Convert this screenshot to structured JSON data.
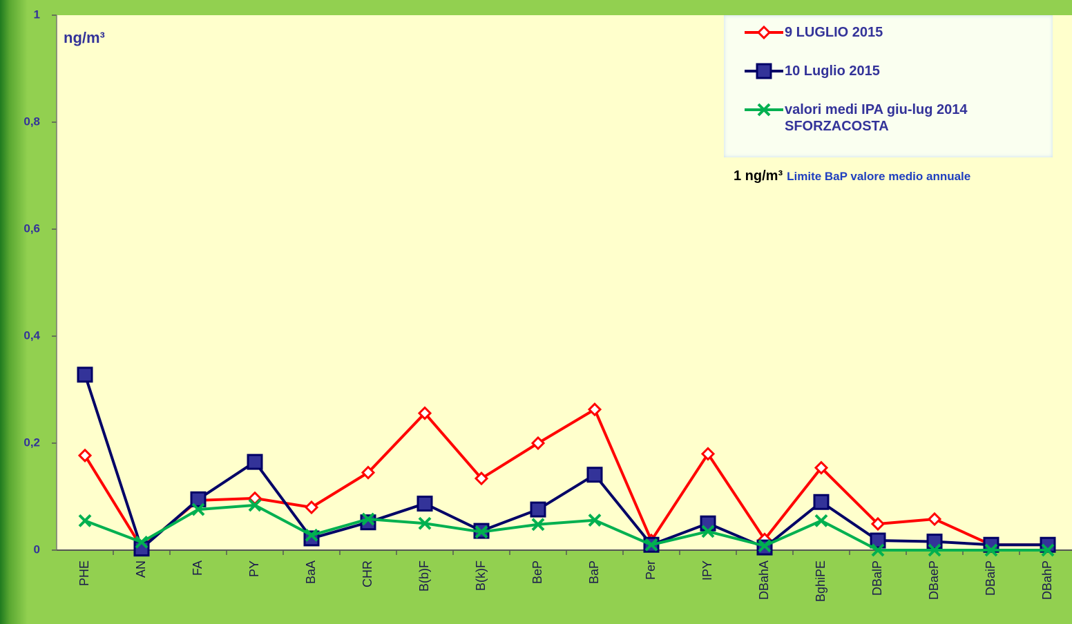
{
  "chart_data": {
    "type": "line",
    "categories": [
      "PHE",
      "AN",
      "FA",
      "PY",
      "BaA",
      "CHR",
      "B(b)F",
      "B(k)F",
      "BeP",
      "BaP",
      "Per",
      "IPY",
      "DBahA",
      "BghiPE",
      "DBalP",
      "DBaeP",
      "DBaiP",
      "DBahP"
    ],
    "series": [
      {
        "name": "9 LUGLIO 2015",
        "color": "#ff0000",
        "marker": "diamond",
        "values": [
          0.177,
          0.005,
          0.093,
          0.097,
          0.08,
          0.145,
          0.256,
          0.134,
          0.2,
          0.263,
          0.018,
          0.18,
          0.02,
          0.154,
          0.049,
          0.058,
          0.01,
          0.01
        ]
      },
      {
        "name": "10 Luglio 2015",
        "color": "#000066",
        "marker": "square",
        "values": [
          0.328,
          0.003,
          0.095,
          0.165,
          0.022,
          0.052,
          0.087,
          0.036,
          0.076,
          0.141,
          0.01,
          0.05,
          0.005,
          0.09,
          0.018,
          0.016,
          0.01,
          0.01
        ]
      },
      {
        "name": "valori medi IPA giu-lug 2014 SFORZACOSTA",
        "color": "#00b050",
        "marker": "x",
        "values": [
          0.055,
          0.015,
          0.076,
          0.084,
          0.028,
          0.058,
          0.05,
          0.034,
          0.048,
          0.056,
          0.01,
          0.035,
          0.008,
          0.055,
          0,
          0,
          0,
          0
        ]
      }
    ],
    "ylim": [
      0,
      1
    ],
    "yticks": [
      0,
      {
        "value": 0.2,
        "label": "0,2"
      },
      {
        "value": 0.4,
        "label": "0,4"
      },
      {
        "value": 0.6,
        "label": "0,6"
      },
      {
        "value": 0.8,
        "label": "0,8"
      },
      1
    ],
    "annotations": {
      "unit": "ng/m³",
      "limit_value": "1 ng/m³",
      "limit_text": "Limite BaP valore medio annuale"
    },
    "legend": "top-right"
  }
}
